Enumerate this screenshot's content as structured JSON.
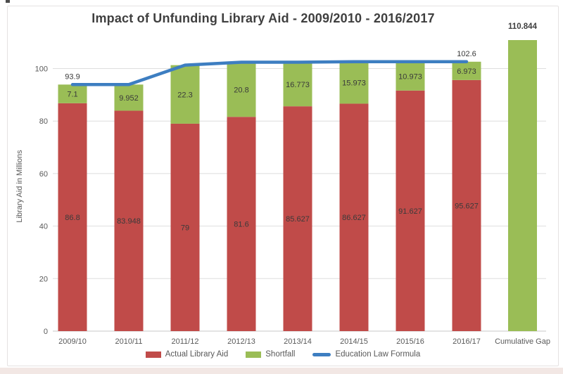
{
  "title": "Impact of Unfunding Library Aid - 2009/2010 - 2016/2017",
  "chart_data": {
    "type": "bar",
    "subtype": "stacked-bars-with-line-overlay",
    "title": "Impact of Unfunding Library Aid - 2009/2010 - 2016/2017",
    "categories": [
      "2009/10",
      "2010/11",
      "2011/12",
      "2012/13",
      "2013/14",
      "2014/15",
      "2015/16",
      "2016/17"
    ],
    "series": [
      {
        "name": "Actual Library Aid",
        "type": "bar",
        "color": "#c04b49",
        "values": [
          86.8,
          83.948,
          79,
          81.6,
          85.627,
          86.627,
          91.627,
          95.627
        ]
      },
      {
        "name": "Shortfall",
        "type": "bar",
        "color": "#9abd56",
        "values": [
          7.1,
          9.952,
          22.3,
          20.8,
          16.773,
          15.973,
          10.973,
          6.973
        ]
      },
      {
        "name": "Education Law Formula",
        "type": "line",
        "color": "#3d7ec1",
        "values": [
          93.9,
          93.9,
          101.3,
          102.4,
          102.4,
          102.6,
          102.6,
          102.6
        ],
        "shown_point_labels": {
          "first": 93.9,
          "last": 102.6
        }
      }
    ],
    "extra_bar": {
      "category": "Cumulative Gap",
      "value": 110.844,
      "color": "#9abd56"
    },
    "xlabel": "",
    "ylabel": "Library Aid in Millions",
    "yticks": [
      0,
      20,
      40,
      60,
      80,
      100
    ],
    "ylim": [
      0,
      115
    ],
    "grid": "horizontal",
    "legend_position": "bottom"
  },
  "colors": {
    "actual_bar": "#c04b49",
    "shortfall_bar": "#9abd56",
    "formula_line": "#3d7ec1",
    "title_text": "#3f3f3f",
    "axis_text": "#595959",
    "gridline": "#dedede",
    "frame_border": "#e5e2e2",
    "bottom_strip": "#f2e7e4"
  }
}
